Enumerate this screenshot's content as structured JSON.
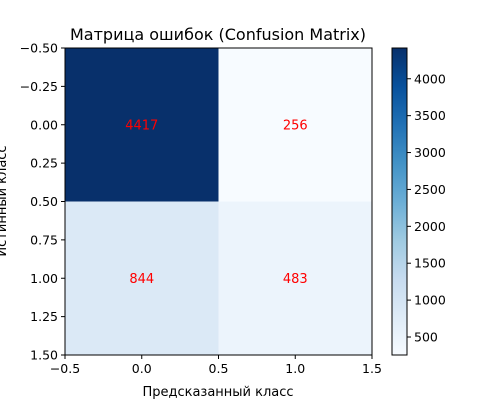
{
  "chart_data": {
    "type": "heatmap",
    "title": "Матрица ошибок (Confusion Matrix)",
    "xlabel": "Предсказанный класс",
    "ylabel": "Истинный класс",
    "matrix": [
      [
        4417,
        256
      ],
      [
        844,
        483
      ]
    ],
    "xlim": [
      -0.5,
      1.5
    ],
    "ylim": [
      1.5,
      -0.5
    ],
    "xticks": [
      "−0.5",
      "0.0",
      "0.5",
      "1.0",
      "1.5"
    ],
    "yticks": [
      "−0.50",
      "−0.25",
      "0.00",
      "0.25",
      "0.50",
      "0.75",
      "1.00",
      "1.25",
      "1.50"
    ],
    "colorbar": {
      "min": 256,
      "max": 4417,
      "ticks": [
        "500",
        "1000",
        "1500",
        "2000",
        "2500",
        "3000",
        "3500",
        "4000"
      ],
      "colormap": "Blues"
    },
    "annotation_color": "#ff0000",
    "grid": false
  }
}
